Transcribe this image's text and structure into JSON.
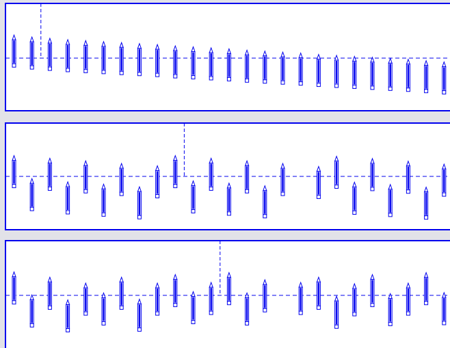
{
  "colors": {
    "accent": "#0000ee",
    "panel_background": "#ffffff",
    "window_background": "#e2e2e8"
  },
  "icon": "pencil-icon",
  "panels": [
    {
      "name": "panel-top",
      "cursor_index": 1,
      "offsets": [
        0.62,
        0.56,
        0.52,
        0.48,
        0.45,
        0.42,
        0.39,
        0.36,
        0.33,
        0.29,
        0.26,
        0.23,
        0.2,
        0.16,
        0.13,
        0.1,
        0.07,
        0.03,
        0.0,
        -0.03,
        -0.06,
        -0.09,
        -0.12,
        -0.16,
        -0.2
      ]
    },
    {
      "name": "panel-middle",
      "cursor_index": 9,
      "offsets": [
        0.55,
        -0.15,
        0.47,
        -0.25,
        0.39,
        -0.32,
        0.31,
        -0.4,
        0.24,
        0.55,
        -0.22,
        0.47,
        -0.29,
        0.39,
        -0.37,
        0.31,
        null,
        0.22,
        0.53,
        -0.26,
        0.46,
        -0.33,
        0.38,
        -0.41,
        0.29
      ]
    },
    {
      "name": "panel-bottom",
      "cursor_index": 11,
      "offsets": [
        0.63,
        -0.07,
        0.47,
        -0.22,
        0.29,
        -0.01,
        0.47,
        -0.2,
        0.29,
        0.55,
        0.03,
        0.31,
        0.61,
        -0.01,
        0.39,
        null,
        0.31,
        0.47,
        -0.11,
        0.27,
        0.55,
        -0.03,
        0.29,
        0.61,
        0.0
      ]
    }
  ]
}
